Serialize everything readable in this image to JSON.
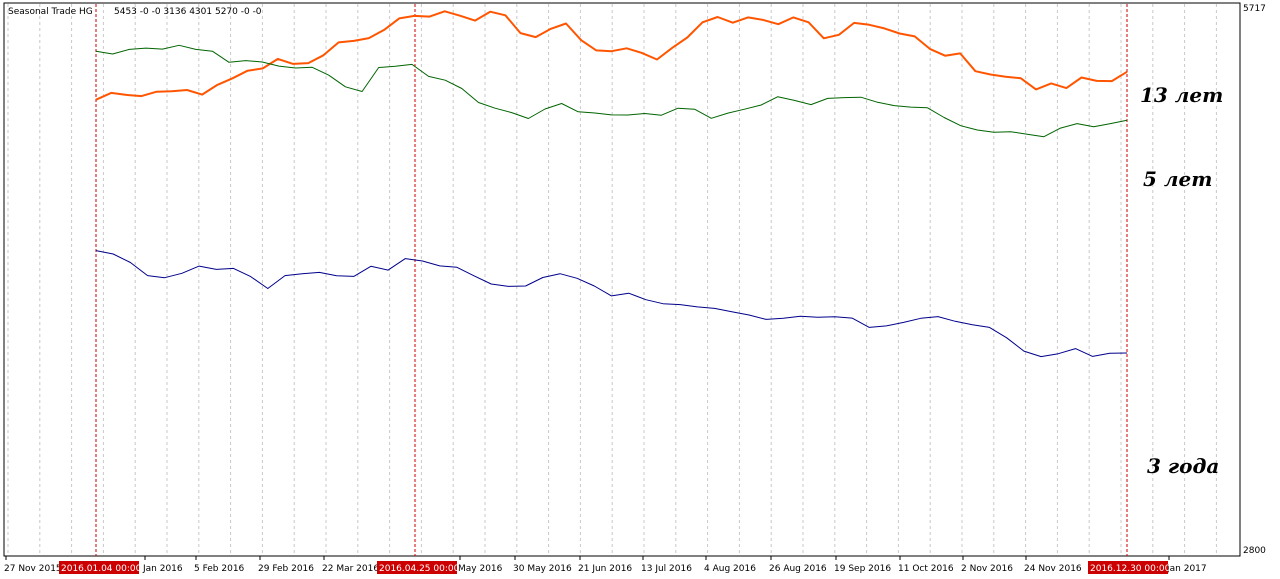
{
  "window_title": "Seasonal Trade HG",
  "header_values": "5453 -0 -0 3136 4301 5270 -0 -0",
  "chart_data": {
    "type": "line",
    "ylim": [
      2800,
      5717
    ],
    "y_ticks": [
      "5717",
      "2800"
    ],
    "x_labels": [
      "27 Nov 2015",
      "Jan 2016",
      "5 Feb 2016",
      "29 Feb 2016",
      "22 Mar 2016",
      "May 2016",
      "30 May 2016",
      "21 Jun 2016",
      "13 Jul 2016",
      "4 Aug 2016",
      "26 Aug 2016",
      "19 Sep 2016",
      "11 Oct 2016",
      "2 Nov 2016",
      "24 Nov 2016",
      "Jan 2017"
    ],
    "markers": [
      "2016.01.04 00:00",
      "2016.04.25 00:00",
      "2016.12.30 00:00"
    ],
    "x_range": [
      "2016-01-04",
      "2016-12-30"
    ],
    "grid": true,
    "colors": {
      "line_13": "#ff5500",
      "line_5": "#006400",
      "line_3": "#00008b",
      "marker": "#cc0000",
      "grid": "#c8c8c8"
    },
    "series": [
      {
        "name": "13 лет",
        "color": "#ff5500",
        "values": [
          5207,
          5243,
          5232,
          5226,
          5249,
          5252,
          5258,
          5234,
          5285,
          5320,
          5360,
          5372,
          5422,
          5396,
          5400,
          5441,
          5509,
          5517,
          5532,
          5575,
          5636,
          5649,
          5645,
          5673,
          5650,
          5624,
          5671,
          5652,
          5558,
          5537,
          5581,
          5609,
          5521,
          5467,
          5463,
          5478,
          5454,
          5419,
          5480,
          5535,
          5615,
          5643,
          5613,
          5641,
          5628,
          5605,
          5641,
          5615,
          5531,
          5549,
          5612,
          5602,
          5583,
          5556,
          5541,
          5475,
          5439,
          5451,
          5357,
          5340,
          5328,
          5320,
          5261,
          5293,
          5268,
          5324,
          5306,
          5305,
          5354
        ]
      },
      {
        "name": "5 лет",
        "color": "#006400",
        "values": [
          5462,
          5448,
          5472,
          5479,
          5474,
          5494,
          5472,
          5463,
          5404,
          5413,
          5406,
          5384,
          5374,
          5378,
          5336,
          5275,
          5250,
          5377,
          5383,
          5393,
          5330,
          5310,
          5266,
          5192,
          5162,
          5139,
          5108,
          5158,
          5187,
          5143,
          5137,
          5127,
          5126,
          5134,
          5125,
          5162,
          5157,
          5109,
          5136,
          5157,
          5179,
          5223,
          5203,
          5181,
          5214,
          5218,
          5220,
          5193,
          5176,
          5168,
          5164,
          5113,
          5070,
          5047,
          5035,
          5038,
          5025,
          5012,
          5057,
          5081,
          5064,
          5081,
          5098
        ]
      },
      {
        "name": "3 года",
        "color": "#00008b",
        "values": [
          4411,
          4393,
          4348,
          4279,
          4268,
          4291,
          4329,
          4312,
          4317,
          4274,
          4211,
          4279,
          4289,
          4296,
          4278,
          4275,
          4328,
          4308,
          4369,
          4356,
          4330,
          4323,
          4278,
          4235,
          4222,
          4224,
          4269,
          4289,
          4265,
          4224,
          4172,
          4186,
          4152,
          4131,
          4126,
          4114,
          4106,
          4088,
          4071,
          4048,
          4054,
          4065,
          4059,
          4062,
          4055,
          4006,
          4014,
          4032,
          4054,
          4063,
          4038,
          4020,
          4006,
          3951,
          3881,
          3852,
          3867,
          3894,
          3853,
          3869,
          3871
        ]
      }
    ]
  }
}
